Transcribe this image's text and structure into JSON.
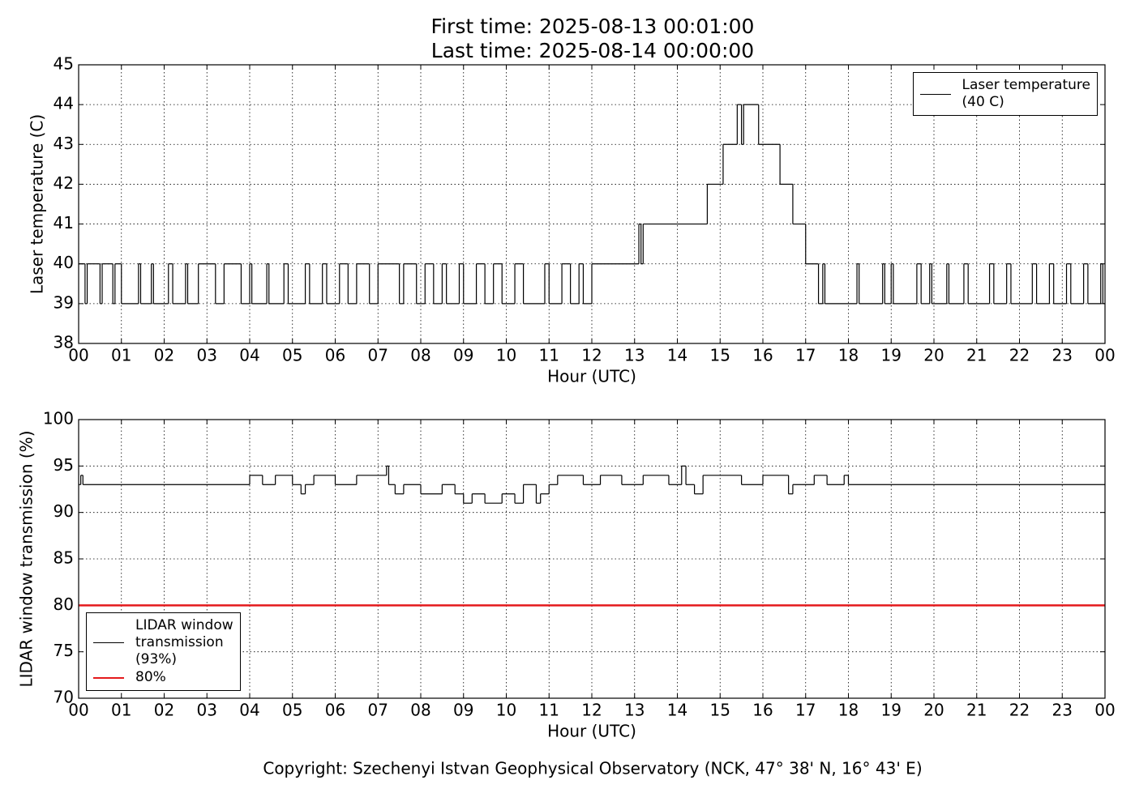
{
  "chart_data": [
    {
      "type": "line",
      "title": "First time: 2025-08-13 00:01:00",
      "subtitle": "Last time: 2025-08-14 00:00:00",
      "xlabel": "Hour (UTC)",
      "ylabel": "Laser temperature (C)",
      "drawstyle": "steps-post",
      "grid": true,
      "legend": "upper right",
      "xlim": [
        0,
        24
      ],
      "xticks": [
        {
          "value": 0,
          "label": "00"
        },
        {
          "value": 1,
          "label": "01"
        },
        {
          "value": 2,
          "label": "02"
        },
        {
          "value": 3,
          "label": "03"
        },
        {
          "value": 4,
          "label": "04"
        },
        {
          "value": 5,
          "label": "05"
        },
        {
          "value": 6,
          "label": "06"
        },
        {
          "value": 7,
          "label": "07"
        },
        {
          "value": 8,
          "label": "08"
        },
        {
          "value": 9,
          "label": "09"
        },
        {
          "value": 10,
          "label": "10"
        },
        {
          "value": 11,
          "label": "11"
        },
        {
          "value": 12,
          "label": "12"
        },
        {
          "value": 13,
          "label": "13"
        },
        {
          "value": 14,
          "label": "14"
        },
        {
          "value": 15,
          "label": "15"
        },
        {
          "value": 16,
          "label": "16"
        },
        {
          "value": 17,
          "label": "17"
        },
        {
          "value": 18,
          "label": "18"
        },
        {
          "value": 19,
          "label": "19"
        },
        {
          "value": 20,
          "label": "20"
        },
        {
          "value": 21,
          "label": "21"
        },
        {
          "value": 22,
          "label": "22"
        },
        {
          "value": 23,
          "label": "23"
        },
        {
          "value": 24,
          "label": "00"
        }
      ],
      "ylim": [
        38,
        45
      ],
      "yticks": [
        38,
        39,
        40,
        41,
        42,
        43,
        44,
        45
      ],
      "series": [
        {
          "name": "Laser temperature\n(40 C)",
          "color": "#000000",
          "x": [
            0,
            0.15,
            0.2,
            0.5,
            0.55,
            0.8,
            0.85,
            1.0,
            1.4,
            1.45,
            1.7,
            1.75,
            2.1,
            2.2,
            2.5,
            2.55,
            2.8,
            3.2,
            3.4,
            3.8,
            4.0,
            4.05,
            4.4,
            4.45,
            4.8,
            4.9,
            5.3,
            5.4,
            5.7,
            5.8,
            6.1,
            6.3,
            6.5,
            6.8,
            7.0,
            7.5,
            7.6,
            7.9,
            8.1,
            8.3,
            8.5,
            8.6,
            8.9,
            9.0,
            9.3,
            9.5,
            9.7,
            9.9,
            10.2,
            10.4,
            10.9,
            11.0,
            11.3,
            11.5,
            11.7,
            11.8,
            12.0,
            13.1,
            13.15,
            13.2,
            14.7,
            15.07,
            15.4,
            15.5,
            15.55,
            15.9,
            16.4,
            16.7,
            17.0,
            17.3,
            17.4,
            17.45,
            18.2,
            18.25,
            18.8,
            18.85,
            19.0,
            19.05,
            19.6,
            19.7,
            19.9,
            19.95,
            20.3,
            20.35,
            20.7,
            20.8,
            21.3,
            21.4,
            21.7,
            21.8,
            22.3,
            22.4,
            22.7,
            22.8,
            23.1,
            23.2,
            23.5,
            23.6,
            23.9,
            23.95,
            24
          ],
          "values": [
            40,
            39,
            40,
            39,
            40,
            39,
            40,
            39,
            40,
            39,
            40,
            39,
            40,
            39,
            40,
            39,
            40,
            39,
            40,
            39,
            40,
            39,
            40,
            39,
            40,
            39,
            40,
            39,
            40,
            39,
            40,
            39,
            40,
            39,
            40,
            39,
            40,
            39,
            40,
            39,
            40,
            39,
            40,
            39,
            40,
            39,
            40,
            39,
            40,
            39,
            40,
            39,
            40,
            39,
            40,
            39,
            40,
            41,
            40,
            41,
            42,
            43,
            44,
            43,
            44,
            43,
            42,
            41,
            40,
            39,
            40,
            39,
            40,
            39,
            40,
            39,
            40,
            39,
            40,
            39,
            40,
            39,
            40,
            39,
            40,
            39,
            40,
            39,
            40,
            39,
            40,
            39,
            40,
            39,
            40,
            39,
            40,
            39,
            40,
            39,
            39
          ]
        }
      ]
    },
    {
      "type": "line",
      "xlabel": "Hour (UTC)",
      "ylabel": "LIDAR window transmission (%)",
      "drawstyle": "steps-post",
      "grid": true,
      "legend": "lower left",
      "xlim": [
        0,
        24
      ],
      "xticks": [
        {
          "value": 0,
          "label": "00"
        },
        {
          "value": 1,
          "label": "01"
        },
        {
          "value": 2,
          "label": "02"
        },
        {
          "value": 3,
          "label": "03"
        },
        {
          "value": 4,
          "label": "04"
        },
        {
          "value": 5,
          "label": "05"
        },
        {
          "value": 6,
          "label": "06"
        },
        {
          "value": 7,
          "label": "07"
        },
        {
          "value": 8,
          "label": "08"
        },
        {
          "value": 9,
          "label": "09"
        },
        {
          "value": 10,
          "label": "10"
        },
        {
          "value": 11,
          "label": "11"
        },
        {
          "value": 12,
          "label": "12"
        },
        {
          "value": 13,
          "label": "13"
        },
        {
          "value": 14,
          "label": "14"
        },
        {
          "value": 15,
          "label": "15"
        },
        {
          "value": 16,
          "label": "16"
        },
        {
          "value": 17,
          "label": "17"
        },
        {
          "value": 18,
          "label": "18"
        },
        {
          "value": 19,
          "label": "19"
        },
        {
          "value": 20,
          "label": "20"
        },
        {
          "value": 21,
          "label": "21"
        },
        {
          "value": 22,
          "label": "22"
        },
        {
          "value": 23,
          "label": "23"
        },
        {
          "value": 24,
          "label": "00"
        }
      ],
      "ylim": [
        70,
        100
      ],
      "yticks": [
        70,
        75,
        80,
        85,
        90,
        95,
        100
      ],
      "series": [
        {
          "name": "LIDAR window\ntransmission\n(93%)",
          "color": "#000000",
          "x": [
            0,
            0.05,
            0.1,
            4.0,
            4.3,
            4.6,
            5.0,
            5.2,
            5.3,
            5.5,
            6.0,
            6.5,
            7.2,
            7.25,
            7.4,
            7.6,
            8.0,
            8.5,
            8.8,
            9.0,
            9.2,
            9.5,
            9.9,
            10.2,
            10.4,
            10.7,
            10.8,
            11.0,
            11.2,
            11.8,
            12.2,
            12.7,
            13.2,
            13.8,
            14.1,
            14.2,
            14.4,
            14.6,
            15.5,
            16.0,
            16.6,
            16.7,
            17.2,
            17.5,
            17.9,
            18.0,
            24
          ],
          "values": [
            93,
            94,
            93,
            94,
            93,
            94,
            93,
            92,
            93,
            94,
            93,
            94,
            95,
            93,
            92,
            93,
            92,
            93,
            92,
            91,
            92,
            91,
            92,
            91,
            93,
            91,
            92,
            93,
            94,
            93,
            94,
            93,
            94,
            93,
            95,
            93,
            92,
            94,
            93,
            94,
            92,
            93,
            94,
            93,
            94,
            93,
            93
          ]
        },
        {
          "name": "80%",
          "color": "#e41a1c",
          "x": [
            0,
            24
          ],
          "values": [
            80,
            80
          ]
        }
      ]
    }
  ],
  "footer": "Copyright: Szechenyi Istvan Geophysical Observatory (NCK, 47° 38' N, 16° 43' E)"
}
